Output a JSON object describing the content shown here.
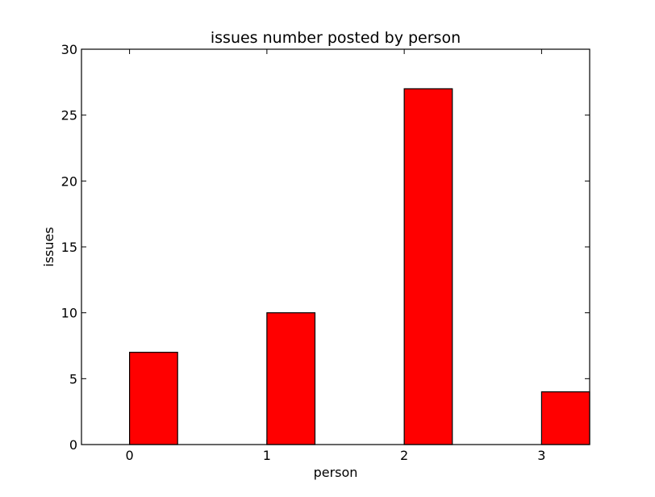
{
  "chart_data": {
    "type": "bar",
    "title": "issues number posted by person",
    "xlabel": "person",
    "ylabel": "issues",
    "categories": [
      "0",
      "1",
      "2",
      "3"
    ],
    "values": [
      7,
      10,
      27,
      4
    ],
    "xlim": [
      -0.35,
      3.35
    ],
    "ylim": [
      0,
      30
    ],
    "yticks": [
      "0",
      "5",
      "10",
      "15",
      "20",
      "25",
      "30"
    ],
    "bar_color": "#ff0000",
    "bar_edge_color": "#000000",
    "grid": false,
    "legend": "none"
  }
}
